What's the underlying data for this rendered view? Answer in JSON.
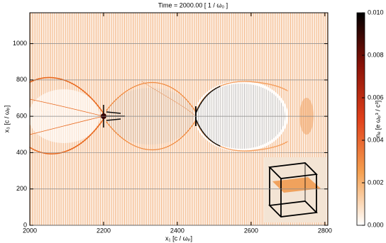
{
  "chart_data": {
    "type": "heatmap",
    "title": "Time = 2000.00 [ 1 / ω₀ ]",
    "x_label": "x₁ [c / ωₚ]",
    "y_label": "x₃ [c / ωₚ]",
    "xlim": [
      2000,
      2808
    ],
    "xticks": [
      2000,
      2200,
      2400,
      2600,
      2800
    ],
    "ylim": [
      0,
      1170
    ],
    "yticks": [
      0,
      200,
      400,
      600,
      800,
      1000
    ],
    "grid": true,
    "colorbar": {
      "label": "nₑ [e ωₚ³ / c³]",
      "lim": [
        0,
        0.01
      ],
      "ticks": [
        {
          "value": 0,
          "label": "0.000"
        },
        {
          "value": 0.002,
          "label": "0.002"
        },
        {
          "value": 0.004,
          "label": "0.004"
        },
        {
          "value": 0.006,
          "label": "0.006"
        },
        {
          "value": 0.008,
          "label": "0.008"
        },
        {
          "value": 0.01,
          "label": "0.010"
        }
      ],
      "colors": [
        "#ffffff",
        "#f5a050",
        "#e0401a",
        "#8a1208",
        "#000000"
      ]
    }
  }
}
